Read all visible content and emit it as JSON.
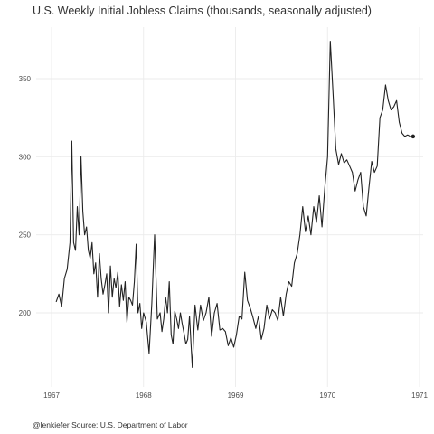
{
  "title": "U.S. Weekly Initial Jobless Claims (thousands, seasonally adjusted)",
  "caption": "@lenkiefer Source: U.S. Department of Labor",
  "chart_data": {
    "type": "line",
    "title": "U.S. Weekly Initial Jobless Claims (thousands, seasonally adjusted)",
    "xlabel": "",
    "ylabel": "",
    "xlim": [
      1967,
      1971
    ],
    "ylim": [
      150,
      380
    ],
    "x_ticks": [
      1967,
      1968,
      1969,
      1970,
      1971
    ],
    "y_ticks": [
      200,
      250,
      300,
      350
    ],
    "grid": true,
    "series_color": "#222222",
    "series": [
      {
        "x": [
          1967.05,
          1967.08,
          1967.11,
          1967.14,
          1967.17,
          1967.2,
          1967.22,
          1967.24,
          1967.26,
          1967.28,
          1967.3,
          1967.32,
          1967.34,
          1967.36,
          1967.38,
          1967.4,
          1967.42,
          1967.44,
          1967.46,
          1967.48,
          1967.5,
          1967.52,
          1967.54,
          1967.56,
          1967.58,
          1967.6,
          1967.62,
          1967.64,
          1967.66,
          1967.68,
          1967.7,
          1967.72,
          1967.74,
          1967.76,
          1967.78,
          1967.8,
          1967.82,
          1967.84,
          1967.86,
          1967.88,
          1967.9,
          1967.92,
          1967.94,
          1967.96,
          1967.98,
          1968.0,
          1968.03,
          1968.06,
          1968.09,
          1968.12,
          1968.15,
          1968.18,
          1968.2,
          1968.22,
          1968.24,
          1968.26,
          1968.28,
          1968.3,
          1968.32,
          1968.34,
          1968.36,
          1968.38,
          1968.4,
          1968.42,
          1968.44,
          1968.46,
          1968.48,
          1968.5,
          1968.53,
          1968.56,
          1968.59,
          1968.62,
          1968.65,
          1968.68,
          1968.71,
          1968.74,
          1968.77,
          1968.8,
          1968.83,
          1968.86,
          1968.89,
          1968.92,
          1968.95,
          1968.98,
          1969.01,
          1969.04,
          1969.07,
          1969.1,
          1969.13,
          1969.16,
          1969.19,
          1969.22,
          1969.25,
          1969.28,
          1969.31,
          1969.34,
          1969.37,
          1969.4,
          1969.43,
          1969.46,
          1969.49,
          1969.52,
          1969.55,
          1969.58,
          1969.61,
          1969.64,
          1969.67,
          1969.7,
          1969.73,
          1969.76,
          1969.79,
          1969.82,
          1969.85,
          1969.88,
          1969.91,
          1969.94,
          1969.97,
          1970.0,
          1970.03,
          1970.06,
          1970.09,
          1970.12,
          1970.15,
          1970.18,
          1970.21,
          1970.24,
          1970.27,
          1970.3,
          1970.33,
          1970.36,
          1970.39,
          1970.42,
          1970.45,
          1970.48,
          1970.51,
          1970.54,
          1970.57,
          1970.6,
          1970.63,
          1970.66,
          1970.69,
          1970.72,
          1970.75,
          1970.78,
          1970.81,
          1970.84,
          1970.87,
          1970.9,
          1970.93
        ],
        "y": [
          207,
          212,
          204,
          222,
          228,
          245,
          310,
          245,
          240,
          268,
          250,
          300,
          265,
          250,
          255,
          240,
          235,
          245,
          225,
          232,
          210,
          238,
          222,
          212,
          218,
          225,
          200,
          230,
          210,
          222,
          216,
          226,
          204,
          218,
          208,
          220,
          194,
          210,
          208,
          205,
          220,
          244,
          200,
          206,
          190,
          200,
          194,
          174,
          206,
          250,
          196,
          200,
          188,
          196,
          210,
          200,
          220,
          186,
          180,
          201,
          196,
          190,
          200,
          193,
          187,
          180,
          183,
          198,
          165,
          205,
          189,
          205,
          195,
          200,
          210,
          185,
          200,
          206,
          189,
          190,
          188,
          179,
          184,
          178,
          186,
          198,
          196,
          226,
          208,
          203,
          197,
          190,
          198,
          183,
          190,
          205,
          196,
          202,
          200,
          195,
          210,
          198,
          212,
          220,
          217,
          232,
          238,
          250,
          268,
          252,
          262,
          250,
          268,
          258,
          275,
          255,
          280,
          300,
          374,
          340,
          305,
          295,
          302,
          296,
          298,
          294,
          290,
          278,
          285,
          290,
          268,
          262,
          280,
          297,
          290,
          294,
          325,
          330,
          346,
          336,
          330,
          332,
          336,
          322,
          315,
          313,
          314,
          313,
          313
        ]
      }
    ]
  }
}
